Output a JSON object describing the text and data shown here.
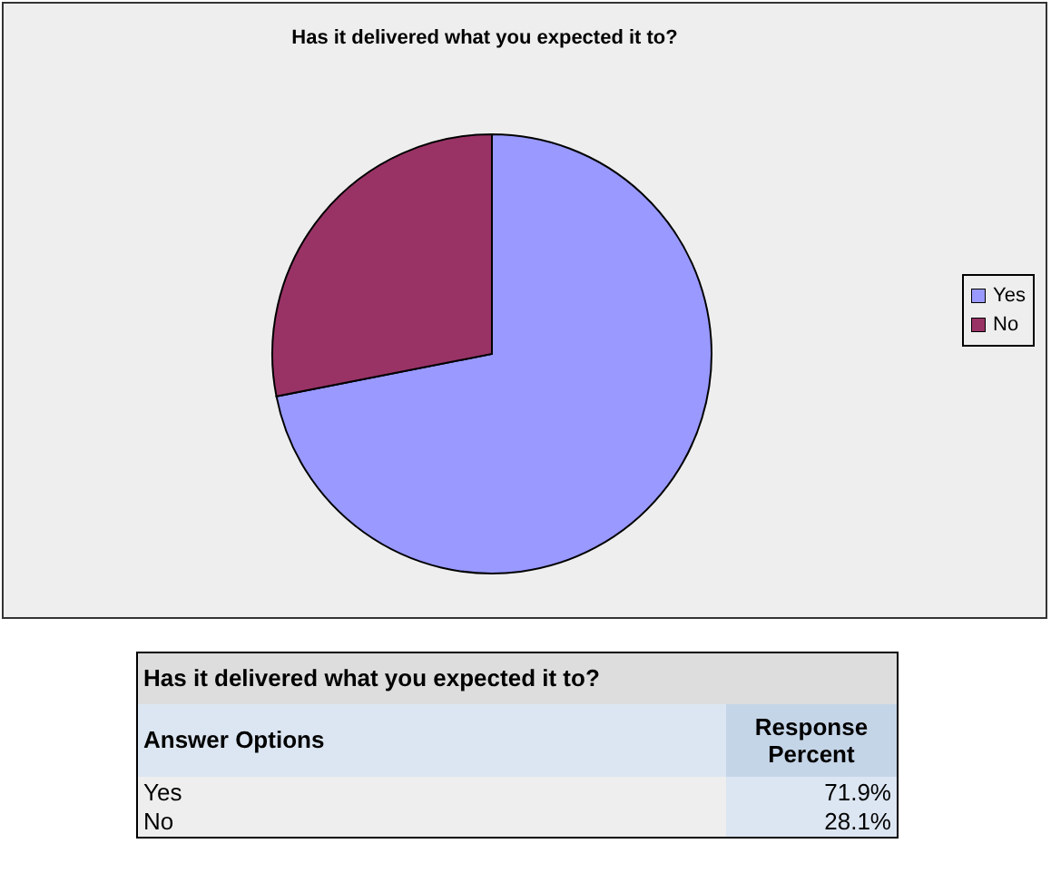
{
  "chart_data": {
    "type": "pie",
    "title": "Has it delivered what you expected it to?",
    "categories": [
      "Yes",
      "No"
    ],
    "values": [
      71.9,
      28.1
    ],
    "colors": [
      "#9999ff",
      "#993366"
    ],
    "legend": "right",
    "annotations": [
      "Has it delivered what you expected it to?",
      "Answer Options",
      "Response Percent",
      "71.9%",
      "28.1%"
    ]
  }
}
